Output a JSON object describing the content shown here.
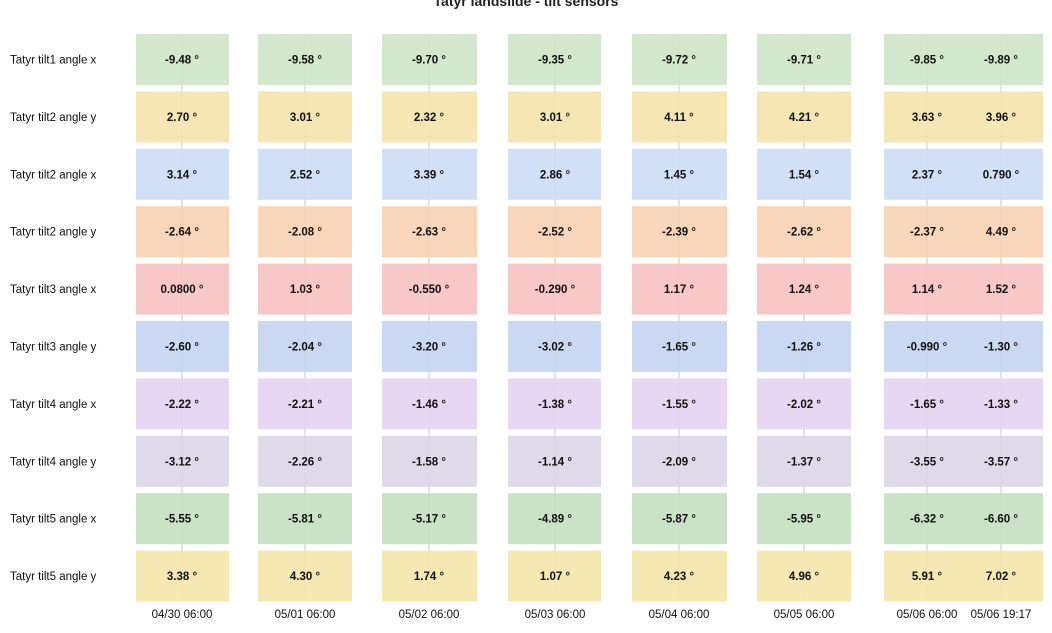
{
  "chart_data": {
    "type": "heatmap",
    "title": "Tatyr landslide - tilt sensors",
    "x": [
      "04/30 06:00",
      "05/01 06:00",
      "05/02 06:00",
      "05/03 06:00",
      "05/04 06:00",
      "05/05 06:00",
      "05/06 06:00",
      "05/06 19:17"
    ],
    "unit": "°",
    "grid": true,
    "series": [
      {
        "name": "Tatyr tilt1 angle x",
        "color": "#cfe5c8",
        "values": [
          "-9.48",
          "-9.58",
          "-9.70",
          "-9.35",
          "-9.72",
          "-9.71",
          "-9.85",
          "-9.89"
        ]
      },
      {
        "name": "Tatyr tilt2 angle y",
        "color": "#f5e4ad",
        "values": [
          "2.70",
          "3.01",
          "2.32",
          "3.01",
          "4.11",
          "4.21",
          "3.63",
          "3.96"
        ]
      },
      {
        "name": "Tatyr tilt2 angle x",
        "color": "#cddcf6",
        "values": [
          "3.14",
          "2.52",
          "3.39",
          "2.86",
          "1.45",
          "1.54",
          "2.37",
          "0.790"
        ]
      },
      {
        "name": "Tatyr tilt2 angle y",
        "color": "#f8d2b4",
        "values": [
          "-2.64",
          "-2.08",
          "-2.63",
          "-2.52",
          "-2.39",
          "-2.62",
          "-2.37",
          "4.49"
        ]
      },
      {
        "name": "Tatyr tilt3 angle x",
        "color": "#f7c3c3",
        "values": [
          "0.0800",
          "1.03",
          "-0.550",
          "-0.290",
          "1.17",
          "1.24",
          "1.14",
          "1.52"
        ]
      },
      {
        "name": "Tatyr tilt3 angle y",
        "color": "#c6d6f0",
        "values": [
          "-2.60",
          "-2.04",
          "-3.20",
          "-3.02",
          "-1.65",
          "-1.26",
          "-0.990",
          "-1.30"
        ]
      },
      {
        "name": "Tatyr tilt4 angle x",
        "color": "#e6d4f1",
        "values": [
          "-2.22",
          "-2.21",
          "-1.46",
          "-1.38",
          "-1.55",
          "-2.02",
          "-1.65",
          "-1.33"
        ]
      },
      {
        "name": "Tatyr tilt4 angle y",
        "color": "#dcd7e8",
        "values": [
          "-3.12",
          "-2.26",
          "-1.58",
          "-1.14",
          "-2.09",
          "-1.37",
          "-3.55",
          "-3.57"
        ]
      },
      {
        "name": "Tatyr tilt5 angle x",
        "color": "#c5e1c2",
        "values": [
          "-5.55",
          "-5.81",
          "-5.17",
          "-4.89",
          "-5.87",
          "-5.95",
          "-6.32",
          "-6.60"
        ]
      },
      {
        "name": "Tatyr tilt5 angle y",
        "color": "#f5e6ad",
        "values": [
          "3.38",
          "4.30",
          "1.74",
          "1.07",
          "4.23",
          "4.96",
          "5.91",
          "7.02"
        ]
      }
    ]
  }
}
